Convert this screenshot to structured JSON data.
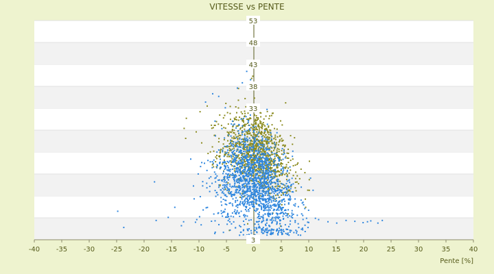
{
  "chart_data": {
    "type": "scatter",
    "title": "VITESSE vs PENTE",
    "xlabel": "Pente [%]",
    "ylabel": "",
    "xlim": [
      -40,
      40
    ],
    "ylim": [
      3,
      53
    ],
    "x_ticks": [
      -40,
      -35,
      -30,
      -25,
      -20,
      -15,
      -10,
      -5,
      0,
      5,
      10,
      15,
      20,
      25,
      30,
      35,
      40
    ],
    "y_ticks": [
      3,
      8,
      13,
      18,
      23,
      28,
      33,
      38,
      43,
      48,
      53
    ],
    "y_tick_labels_shown": [
      "53",
      "48",
      "43",
      "38",
      "33",
      "3"
    ],
    "grid": "horizontal alternating bands",
    "legend": "none",
    "colors": {
      "background": "#eef3cf",
      "plot_background": "#ffffff",
      "band": "#f2f2f2",
      "text": "#555a1a",
      "series_1": "#2e86de",
      "series_2": "#8a8a1e"
    },
    "series": [
      {
        "color": "#8a8a1e",
        "cluster": {
          "x_mean": 0.5,
          "x_sd": 3.2,
          "y_mean": 24,
          "y_sd": 4.5,
          "count": 1100
        },
        "x": [
          -8.5,
          -9.8,
          -12.3,
          -12.7,
          -10.5,
          -7.2,
          -5.1,
          -4.3,
          -2.8,
          -1.6,
          -0.4,
          0.7,
          1.3,
          2.2,
          3.1,
          3.9,
          4.6,
          5.4,
          6.3,
          7.1,
          7.9,
          8.6,
          9.3,
          10.1,
          -0.2,
          0.1
        ],
        "y": [
          33.5,
          32.2,
          30.7,
          28.4,
          27.6,
          26.8,
          34.1,
          33.4,
          37.5,
          35.2,
          39.8,
          37.8,
          29.5,
          31.2,
          27.1,
          26.4,
          25.3,
          24.6,
          22.7,
          21.4,
          20.2,
          19.1,
          18.3,
          16.7,
          40.3,
          5.2
        ]
      },
      {
        "color": "#2e86de",
        "cluster": {
          "x_mean": 0.3,
          "x_sd": 3.6,
          "y_mean": 17,
          "y_sd": 5.5,
          "count": 1700
        },
        "x": [
          -24.8,
          -23.7,
          -17.8,
          -18.1,
          -15.6,
          -14.4,
          -13.2,
          -12.8,
          -11.5,
          -10.4,
          -9.6,
          -8.8,
          -7.5,
          -6.4,
          -5.2,
          -4.1,
          -3.0,
          -2.1,
          -1.3,
          -0.6,
          -2.4,
          -1.9,
          2.5,
          4.8,
          7.2,
          9.6,
          11.8,
          13.5,
          15.1,
          16.8,
          18.4,
          19.9,
          21.3,
          22.6,
          23.4,
          20.7
        ],
        "y": [
          9.5,
          5.8,
          7.4,
          16.2,
          8.1,
          10.4,
          6.2,
          7.1,
          21.4,
          7.6,
          6.4,
          34.4,
          36.3,
          35.7,
          33.1,
          29.4,
          37.6,
          38.8,
          41.4,
          39.5,
          4.7,
          5.1,
          4.6,
          5.2,
          8.8,
          7.9,
          7.6,
          7.1,
          6.8,
          7.4,
          7.2,
          6.9,
          7.3,
          6.8,
          7.4,
          7.1
        ]
      }
    ]
  }
}
